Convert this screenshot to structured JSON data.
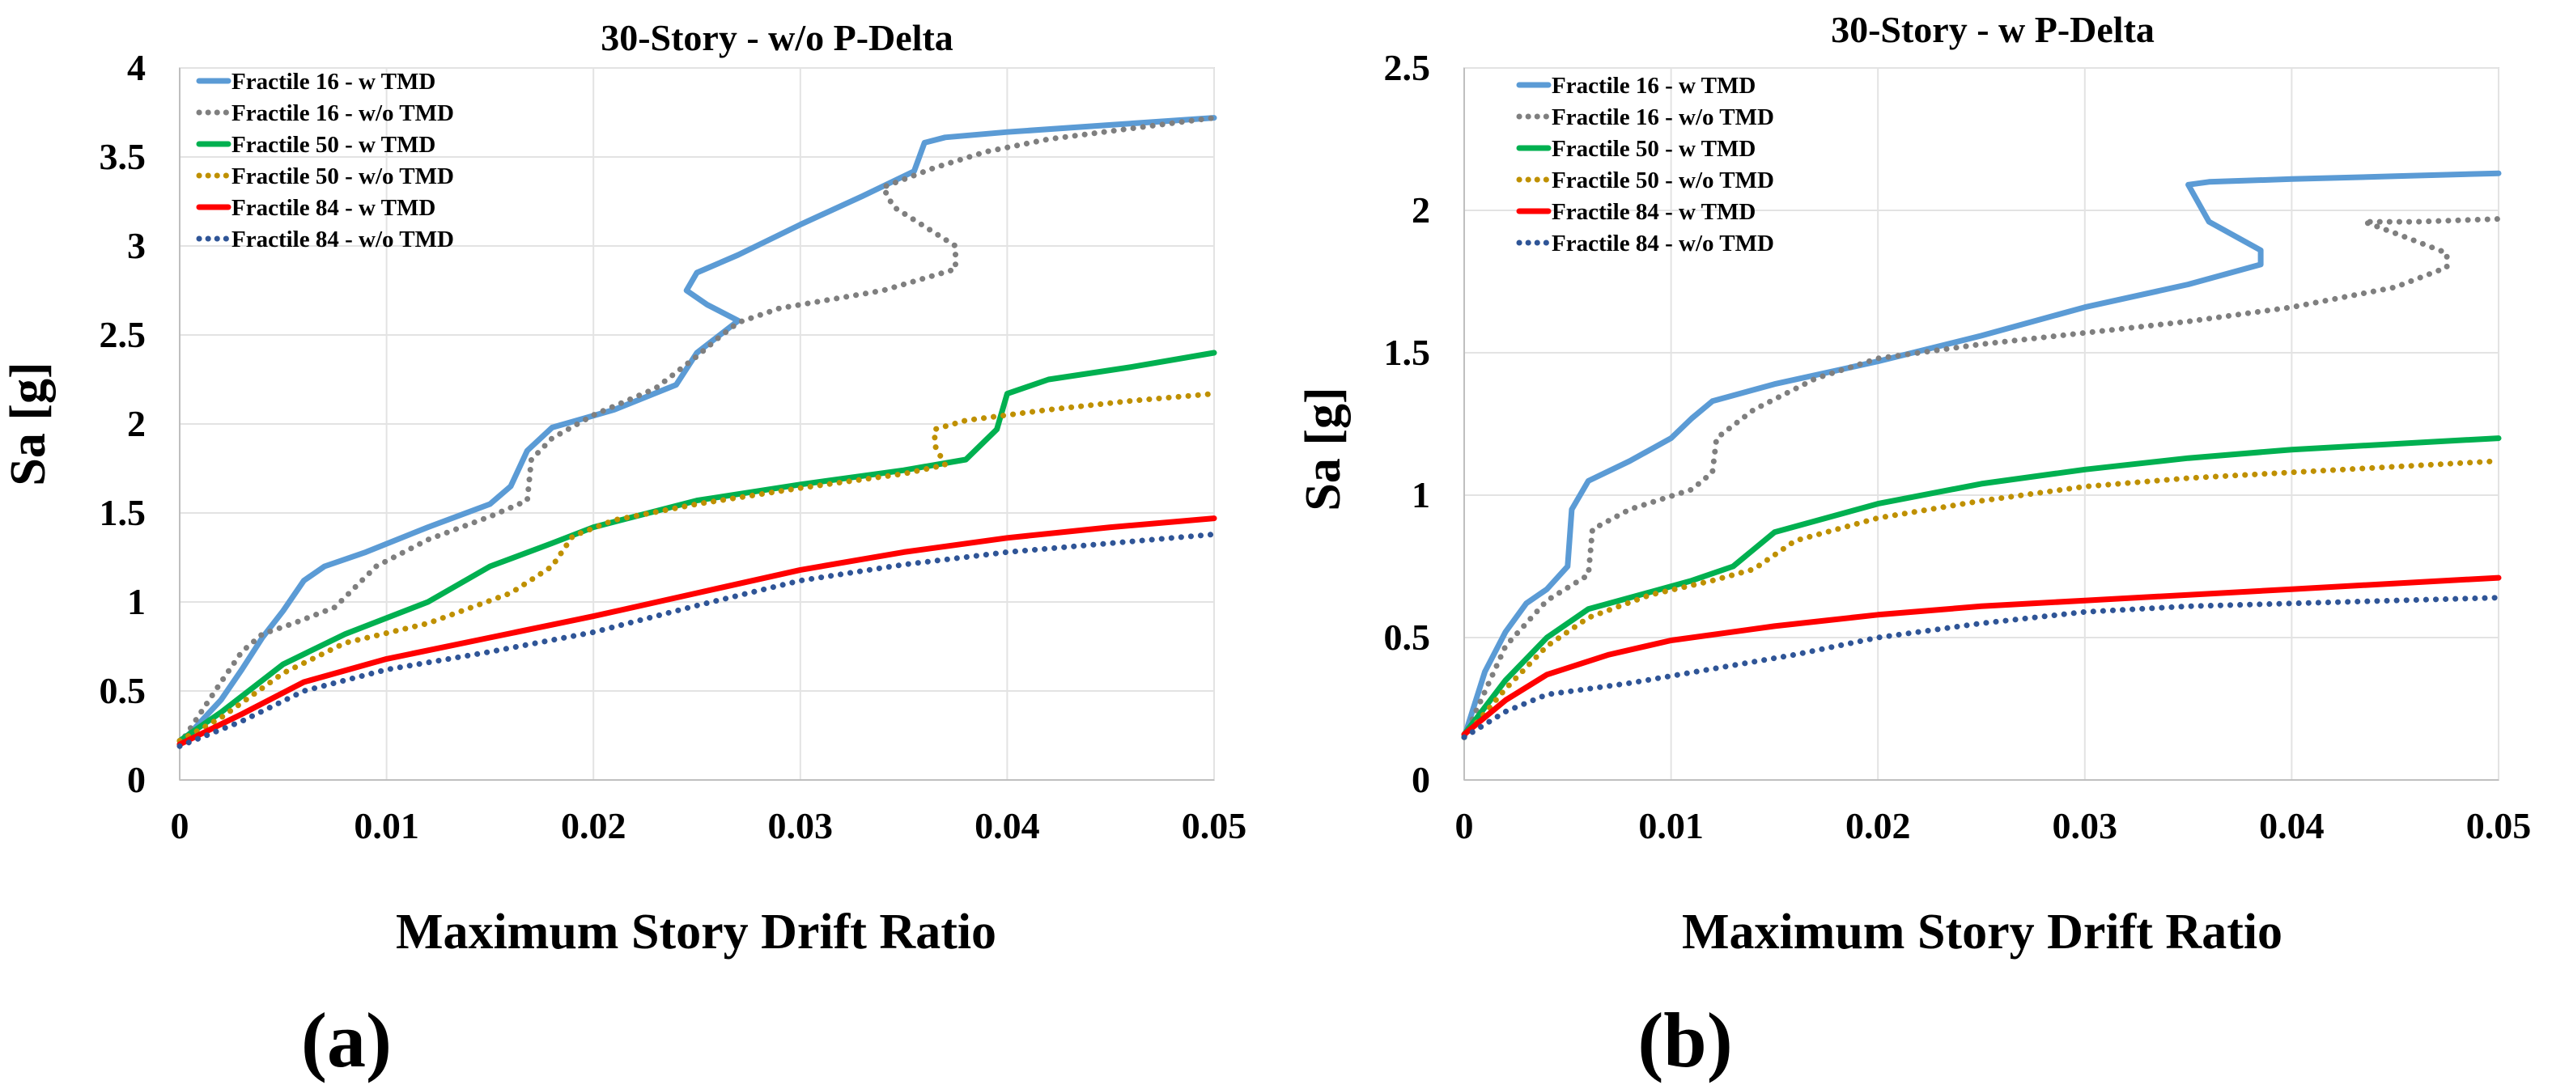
{
  "chart_data": [
    {
      "type": "line",
      "title": "30-Story - w/o P-Delta",
      "xlabel": "Maximum Story Drift Ratio",
      "ylabel": "Sa [g]",
      "panel_label": "(a)",
      "xlim": [
        0,
        0.05
      ],
      "ylim": [
        0,
        4
      ],
      "xticks": [
        0,
        0.01,
        0.02,
        0.03,
        0.04,
        0.05
      ],
      "xtick_labels": [
        "0",
        "0.01",
        "0.02",
        "0.03",
        "0.04",
        "0.05"
      ],
      "yticks": [
        0,
        0.5,
        1,
        1.5,
        2,
        2.5,
        3,
        3.5,
        4
      ],
      "ytick_labels": [
        "0",
        "0.5",
        "1",
        "1.5",
        "2",
        "2.5",
        "3",
        "3.5",
        "4"
      ],
      "grid": true,
      "legend_position": "top-left",
      "series": [
        {
          "name": "Fractile 16 - w TMD",
          "color": "#5b9bd5",
          "dash": "solid",
          "points": [
            [
              0,
              0.2
            ],
            [
              0.002,
              0.45
            ],
            [
              0.003,
              0.62
            ],
            [
              0.004,
              0.8
            ],
            [
              0.005,
              0.95
            ],
            [
              0.006,
              1.12
            ],
            [
              0.007,
              1.2
            ],
            [
              0.009,
              1.28
            ],
            [
              0.012,
              1.42
            ],
            [
              0.015,
              1.55
            ],
            [
              0.016,
              1.65
            ],
            [
              0.0168,
              1.85
            ],
            [
              0.018,
              1.98
            ],
            [
              0.021,
              2.08
            ],
            [
              0.024,
              2.22
            ],
            [
              0.025,
              2.4
            ],
            [
              0.027,
              2.58
            ],
            [
              0.0255,
              2.67
            ],
            [
              0.0245,
              2.75
            ],
            [
              0.025,
              2.85
            ],
            [
              0.027,
              2.95
            ],
            [
              0.03,
              3.12
            ],
            [
              0.033,
              3.28
            ],
            [
              0.0355,
              3.42
            ],
            [
              0.036,
              3.58
            ],
            [
              0.037,
              3.61
            ],
            [
              0.04,
              3.64
            ],
            [
              0.045,
              3.68
            ],
            [
              0.05,
              3.72
            ]
          ]
        },
        {
          "name": "Fractile 16 - w/o TMD",
          "color": "#7f7f7f",
          "dash": "dotted",
          "points": [
            [
              0,
              0.2
            ],
            [
              0.002,
              0.55
            ],
            [
              0.003,
              0.72
            ],
            [
              0.004,
              0.82
            ],
            [
              0.0055,
              0.88
            ],
            [
              0.0075,
              0.97
            ],
            [
              0.0095,
              1.2
            ],
            [
              0.012,
              1.35
            ],
            [
              0.015,
              1.48
            ],
            [
              0.0168,
              1.57
            ],
            [
              0.017,
              1.8
            ],
            [
              0.018,
              1.92
            ],
            [
              0.02,
              2.05
            ],
            [
              0.023,
              2.2
            ],
            [
              0.025,
              2.38
            ],
            [
              0.026,
              2.48
            ],
            [
              0.027,
              2.57
            ],
            [
              0.029,
              2.65
            ],
            [
              0.034,
              2.75
            ],
            [
              0.0375,
              2.87
            ],
            [
              0.0375,
              3.0
            ],
            [
              0.0345,
              3.22
            ],
            [
              0.034,
              3.33
            ],
            [
              0.0365,
              3.44
            ],
            [
              0.039,
              3.53
            ],
            [
              0.042,
              3.6
            ],
            [
              0.046,
              3.66
            ],
            [
              0.05,
              3.72
            ]
          ]
        },
        {
          "name": "Fractile 50 - w TMD",
          "color": "#00b050",
          "dash": "solid",
          "points": [
            [
              0,
              0.22
            ],
            [
              0.002,
              0.38
            ],
            [
              0.005,
              0.65
            ],
            [
              0.008,
              0.82
            ],
            [
              0.012,
              1.0
            ],
            [
              0.015,
              1.2
            ],
            [
              0.018,
              1.33
            ],
            [
              0.02,
              1.42
            ],
            [
              0.025,
              1.57
            ],
            [
              0.03,
              1.66
            ],
            [
              0.035,
              1.74
            ],
            [
              0.038,
              1.8
            ],
            [
              0.0395,
              1.97
            ],
            [
              0.04,
              2.17
            ],
            [
              0.042,
              2.25
            ],
            [
              0.046,
              2.32
            ],
            [
              0.05,
              2.4
            ]
          ]
        },
        {
          "name": "Fractile 50 - w/o TMD",
          "color": "#bf9000",
          "dash": "dotted",
          "points": [
            [
              0,
              0.22
            ],
            [
              0.002,
              0.35
            ],
            [
              0.005,
              0.6
            ],
            [
              0.008,
              0.77
            ],
            [
              0.012,
              0.88
            ],
            [
              0.016,
              1.05
            ],
            [
              0.018,
              1.2
            ],
            [
              0.019,
              1.37
            ],
            [
              0.021,
              1.46
            ],
            [
              0.025,
              1.55
            ],
            [
              0.03,
              1.64
            ],
            [
              0.035,
              1.72
            ],
            [
              0.037,
              1.77
            ],
            [
              0.0365,
              1.88
            ],
            [
              0.0365,
              1.97
            ],
            [
              0.038,
              2.02
            ],
            [
              0.042,
              2.08
            ],
            [
              0.046,
              2.13
            ],
            [
              0.05,
              2.17
            ]
          ]
        },
        {
          "name": "Fractile 84 - w TMD",
          "color": "#ff0000",
          "dash": "solid",
          "points": [
            [
              0,
              0.2
            ],
            [
              0.003,
              0.37
            ],
            [
              0.006,
              0.55
            ],
            [
              0.01,
              0.68
            ],
            [
              0.015,
              0.8
            ],
            [
              0.02,
              0.92
            ],
            [
              0.025,
              1.05
            ],
            [
              0.03,
              1.18
            ],
            [
              0.035,
              1.28
            ],
            [
              0.04,
              1.36
            ],
            [
              0.045,
              1.42
            ],
            [
              0.05,
              1.47
            ]
          ]
        },
        {
          "name": "Fractile 84 - w/o TMD",
          "color": "#2f5597",
          "dash": "dotted",
          "points": [
            [
              0,
              0.19
            ],
            [
              0.003,
              0.33
            ],
            [
              0.006,
              0.5
            ],
            [
              0.01,
              0.62
            ],
            [
              0.015,
              0.72
            ],
            [
              0.02,
              0.83
            ],
            [
              0.025,
              0.98
            ],
            [
              0.03,
              1.12
            ],
            [
              0.035,
              1.21
            ],
            [
              0.04,
              1.28
            ],
            [
              0.045,
              1.33
            ],
            [
              0.05,
              1.38
            ]
          ]
        }
      ]
    },
    {
      "type": "line",
      "title": "30-Story - w P-Delta",
      "xlabel": "Maximum Story Drift Ratio",
      "ylabel": "Sa [g]",
      "panel_label": "(b)",
      "xlim": [
        0,
        0.05
      ],
      "ylim": [
        0,
        2.5
      ],
      "xticks": [
        0,
        0.01,
        0.02,
        0.03,
        0.04,
        0.05
      ],
      "xtick_labels": [
        "0",
        "0.01",
        "0.02",
        "0.03",
        "0.04",
        "0.05"
      ],
      "yticks": [
        0,
        0.5,
        1,
        1.5,
        2,
        2.5
      ],
      "ytick_labels": [
        "0",
        "0.5",
        "1",
        "1.5",
        "2",
        "2.5"
      ],
      "grid": true,
      "legend_position": "top-left",
      "series": [
        {
          "name": "Fractile 16 - w TMD",
          "color": "#5b9bd5",
          "dash": "solid",
          "points": [
            [
              0,
              0.15
            ],
            [
              0.001,
              0.38
            ],
            [
              0.002,
              0.52
            ],
            [
              0.003,
              0.62
            ],
            [
              0.004,
              0.67
            ],
            [
              0.005,
              0.75
            ],
            [
              0.0052,
              0.95
            ],
            [
              0.006,
              1.05
            ],
            [
              0.008,
              1.12
            ],
            [
              0.01,
              1.2
            ],
            [
              0.011,
              1.27
            ],
            [
              0.012,
              1.33
            ],
            [
              0.015,
              1.39
            ],
            [
              0.02,
              1.47
            ],
            [
              0.025,
              1.56
            ],
            [
              0.03,
              1.66
            ],
            [
              0.035,
              1.74
            ],
            [
              0.0385,
              1.81
            ],
            [
              0.0385,
              1.86
            ],
            [
              0.036,
              1.96
            ],
            [
              0.035,
              2.09
            ],
            [
              0.036,
              2.1
            ],
            [
              0.04,
              2.11
            ],
            [
              0.045,
              2.12
            ],
            [
              0.05,
              2.13
            ]
          ]
        },
        {
          "name": "Fractile 16 - w/o TMD",
          "color": "#7f7f7f",
          "dash": "dotted",
          "points": [
            [
              0,
              0.15
            ],
            [
              0.002,
              0.47
            ],
            [
              0.004,
              0.63
            ],
            [
              0.006,
              0.72
            ],
            [
              0.0062,
              0.88
            ],
            [
              0.008,
              0.95
            ],
            [
              0.011,
              1.02
            ],
            [
              0.012,
              1.08
            ],
            [
              0.0122,
              1.2
            ],
            [
              0.014,
              1.3
            ],
            [
              0.017,
              1.41
            ],
            [
              0.02,
              1.48
            ],
            [
              0.025,
              1.53
            ],
            [
              0.03,
              1.57
            ],
            [
              0.035,
              1.61
            ],
            [
              0.04,
              1.66
            ],
            [
              0.045,
              1.73
            ],
            [
              0.0475,
              1.8
            ],
            [
              0.0475,
              1.85
            ],
            [
              0.045,
              1.92
            ],
            [
              0.0435,
              1.96
            ],
            [
              0.046,
              1.96
            ],
            [
              0.05,
              1.97
            ]
          ]
        },
        {
          "name": "Fractile 50 - w TMD",
          "color": "#00b050",
          "dash": "solid",
          "points": [
            [
              0,
              0.16
            ],
            [
              0.002,
              0.35
            ],
            [
              0.004,
              0.5
            ],
            [
              0.006,
              0.6
            ],
            [
              0.009,
              0.66
            ],
            [
              0.011,
              0.7
            ],
            [
              0.013,
              0.75
            ],
            [
              0.015,
              0.87
            ],
            [
              0.02,
              0.97
            ],
            [
              0.025,
              1.04
            ],
            [
              0.03,
              1.09
            ],
            [
              0.035,
              1.13
            ],
            [
              0.04,
              1.16
            ],
            [
              0.045,
              1.18
            ],
            [
              0.05,
              1.2
            ]
          ]
        },
        {
          "name": "Fractile 50 - w/o TMD",
          "color": "#bf9000",
          "dash": "dotted",
          "points": [
            [
              0,
              0.15
            ],
            [
              0.002,
              0.32
            ],
            [
              0.004,
              0.47
            ],
            [
              0.006,
              0.57
            ],
            [
              0.009,
              0.65
            ],
            [
              0.012,
              0.7
            ],
            [
              0.014,
              0.74
            ],
            [
              0.016,
              0.84
            ],
            [
              0.02,
              0.92
            ],
            [
              0.025,
              0.98
            ],
            [
              0.03,
              1.03
            ],
            [
              0.035,
              1.06
            ],
            [
              0.04,
              1.08
            ],
            [
              0.045,
              1.1
            ],
            [
              0.05,
              1.12
            ]
          ]
        },
        {
          "name": "Fractile 84 - w TMD",
          "color": "#ff0000",
          "dash": "solid",
          "points": [
            [
              0,
              0.16
            ],
            [
              0.002,
              0.28
            ],
            [
              0.004,
              0.37
            ],
            [
              0.007,
              0.44
            ],
            [
              0.01,
              0.49
            ],
            [
              0.015,
              0.54
            ],
            [
              0.02,
              0.58
            ],
            [
              0.025,
              0.61
            ],
            [
              0.03,
              0.63
            ],
            [
              0.035,
              0.65
            ],
            [
              0.04,
              0.67
            ],
            [
              0.045,
              0.69
            ],
            [
              0.05,
              0.71
            ]
          ]
        },
        {
          "name": "Fractile 84 - w/o TMD",
          "color": "#2f5597",
          "dash": "dotted",
          "points": [
            [
              0,
              0.15
            ],
            [
              0.002,
              0.24
            ],
            [
              0.004,
              0.3
            ],
            [
              0.008,
              0.34
            ],
            [
              0.012,
              0.39
            ],
            [
              0.016,
              0.44
            ],
            [
              0.02,
              0.5
            ],
            [
              0.025,
              0.55
            ],
            [
              0.03,
              0.59
            ],
            [
              0.035,
              0.61
            ],
            [
              0.04,
              0.62
            ],
            [
              0.045,
              0.63
            ],
            [
              0.05,
              0.64
            ]
          ]
        }
      ]
    }
  ]
}
